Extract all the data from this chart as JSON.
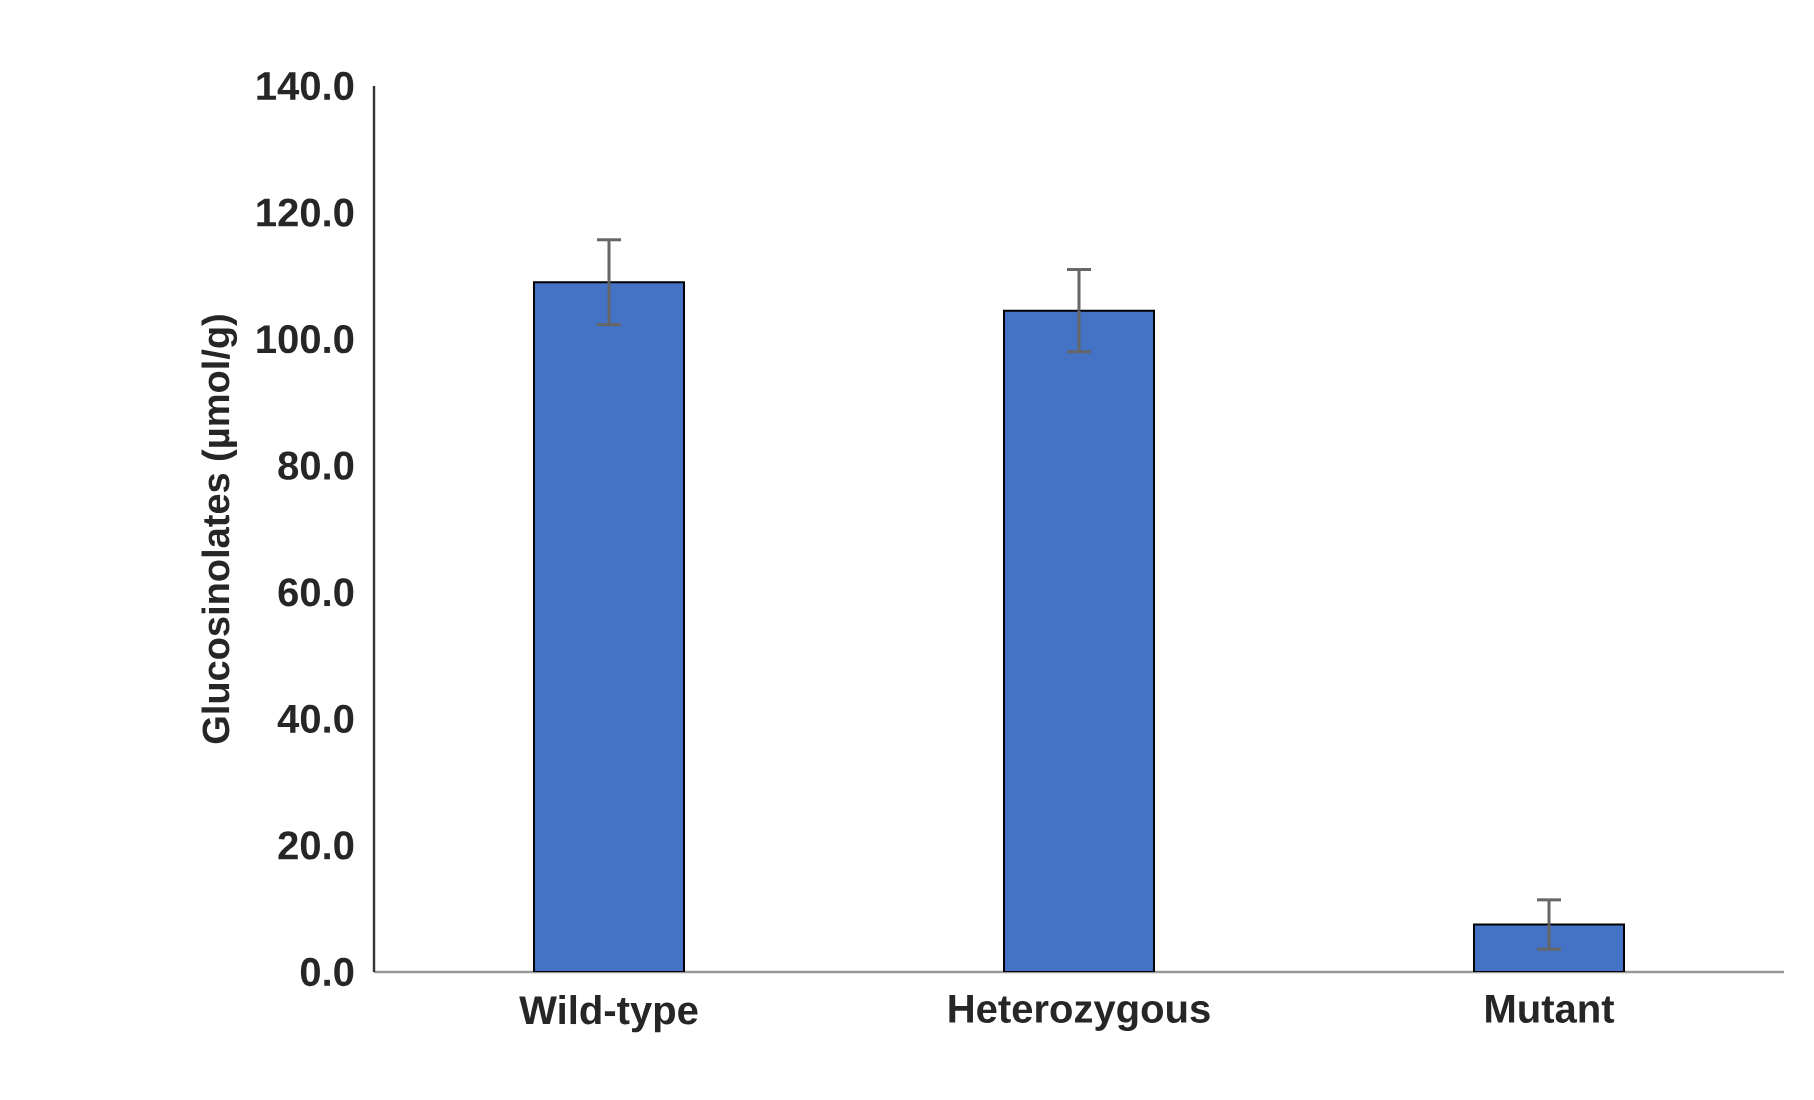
{
  "chart_data": {
    "type": "bar",
    "ylabel": "Glucosinolates (µmol/g)",
    "categories": [
      "Wild-type",
      "Heterozygous",
      "Mutant"
    ],
    "values": [
      109,
      104.5,
      7.5
    ],
    "errors": [
      6.7,
      6.5,
      3.9
    ],
    "color": "#4472c4",
    "ylim": [
      0,
      140
    ],
    "yticks": [
      {
        "value": 0,
        "label": "0.0"
      },
      {
        "value": 20,
        "label": "20.0"
      },
      {
        "value": 40,
        "label": "40.0"
      },
      {
        "value": 60,
        "label": "60.0"
      },
      {
        "value": 80,
        "label": "80.0"
      },
      {
        "value": 100,
        "label": "100.0"
      },
      {
        "value": 120,
        "label": "120.0"
      },
      {
        "value": 140,
        "label": "140.0"
      }
    ],
    "grid": false
  }
}
